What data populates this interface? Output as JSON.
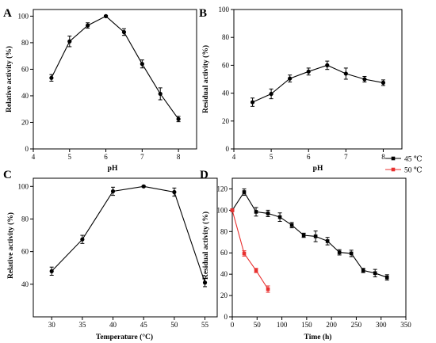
{
  "colors": {
    "black_series": "#000000",
    "red_series": "#e8302f"
  },
  "chart_data": [
    {
      "panel": "A",
      "type": "line",
      "xlabel": "pH",
      "ylabel": "Relative activity (%)",
      "xlim": [
        4,
        8.5
      ],
      "ylim": [
        0,
        105
      ],
      "x_ticks": [
        "4",
        "5",
        "6",
        "7",
        "8"
      ],
      "y_ticks": [
        "0",
        "20",
        "40",
        "60",
        "80",
        "100"
      ],
      "series": [
        {
          "color": "#000000",
          "x": [
            4.5,
            5.0,
            5.5,
            6.0,
            6.5,
            7.0,
            7.5,
            8.0
          ],
          "y": [
            53.5,
            81,
            93,
            100,
            88,
            64,
            41.5,
            22.5
          ],
          "err": [
            2.5,
            4,
            2,
            0.5,
            2.5,
            3,
            4.5,
            2
          ]
        }
      ]
    },
    {
      "panel": "B",
      "type": "line",
      "xlabel": "pH",
      "ylabel": "Residual activity (%)",
      "xlim": [
        4,
        8.5
      ],
      "ylim": [
        0,
        100
      ],
      "x_ticks": [
        "4",
        "5",
        "6",
        "7",
        "8"
      ],
      "y_ticks": [
        "0",
        "20",
        "40",
        "60",
        "80",
        "100"
      ],
      "series": [
        {
          "color": "#000000",
          "x": [
            4.5,
            5.0,
            5.5,
            6.0,
            6.5,
            7.0,
            7.5,
            8.0
          ],
          "y": [
            33.5,
            39.5,
            50.5,
            55.5,
            60,
            54,
            50,
            47.5
          ],
          "err": [
            3,
            3.5,
            2.5,
            2.5,
            3,
            4,
            2,
            2
          ]
        }
      ]
    },
    {
      "panel": "C",
      "type": "line",
      "xlabel": "Temperature (°C)",
      "ylabel": "Relative activity (%)",
      "xlim": [
        27,
        57
      ],
      "ylim": [
        20,
        105
      ],
      "x_ticks": [
        "30",
        "35",
        "40",
        "45",
        "50",
        "55"
      ],
      "y_ticks": [
        "40",
        "60",
        "80",
        "100"
      ],
      "series": [
        {
          "color": "#000000",
          "x": [
            30,
            35,
            40,
            45,
            50,
            55
          ],
          "y": [
            48,
            67.5,
            97,
            100,
            96.5,
            41
          ],
          "err": [
            2.5,
            2.5,
            2.5,
            0.5,
            2.5,
            2.5
          ]
        }
      ]
    },
    {
      "panel": "D",
      "type": "line",
      "xlabel": "Time (h)",
      "ylabel": "Residual activity (%)",
      "xlim": [
        0,
        350
      ],
      "ylim": [
        0,
        130
      ],
      "x_ticks": [
        "0",
        "50",
        "100",
        "150",
        "200",
        "250",
        "300",
        "350"
      ],
      "y_ticks": [
        "0",
        "20",
        "40",
        "60",
        "80",
        "100",
        "120"
      ],
      "legend_position": "top-right",
      "series": [
        {
          "name": "45 ℃",
          "color": "#000000",
          "x": [
            0,
            24,
            48,
            72,
            96,
            120,
            144,
            168,
            192,
            216,
            240,
            264,
            288,
            312
          ],
          "y": [
            100,
            117,
            98.5,
            97,
            93.5,
            86,
            76.5,
            75.5,
            71,
            60.5,
            59.5,
            43.5,
            41,
            37
          ],
          "err": [
            0.5,
            3,
            4,
            3,
            4,
            2.5,
            2,
            5,
            3.5,
            2.5,
            3,
            2,
            3.5,
            2.5
          ]
        },
        {
          "name": "50 ℃",
          "color": "#e8302f",
          "x": [
            0,
            24,
            48,
            72
          ],
          "y": [
            100,
            59.5,
            43.5,
            26
          ],
          "err": [
            0.5,
            2.5,
            2,
            3
          ]
        }
      ]
    }
  ]
}
